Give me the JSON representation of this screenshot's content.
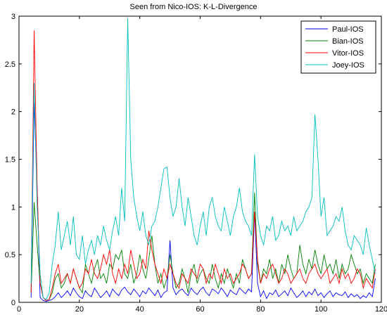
{
  "chart_data": {
    "type": "line",
    "title": "Seen from Nico-IOS: K-L-Divergence",
    "xlabel": "",
    "ylabel": "",
    "xlim": [
      0,
      120
    ],
    "ylim": [
      0,
      3
    ],
    "xticks": [
      0,
      20,
      40,
      60,
      80,
      100,
      120
    ],
    "yticks": [
      0,
      0.5,
      1,
      1.5,
      2,
      2.5,
      3
    ],
    "x_start": 4,
    "legend_position": "top-right",
    "grid": false,
    "series": [
      {
        "name": "Paul-IOS",
        "color": "#0000ff",
        "values": [
          0.05,
          2.1,
          1.2,
          0.05,
          0.02,
          0.01,
          0.02,
          0.03,
          0.06,
          0.1,
          0.05,
          0.08,
          0.12,
          0.07,
          0.15,
          0.1,
          0.06,
          0.04,
          0.12,
          0.08,
          0.06,
          0.15,
          0.1,
          0.05,
          0.08,
          0.12,
          0.06,
          0.14,
          0.1,
          0.07,
          0.13,
          0.16,
          0.11,
          0.08,
          0.14,
          0.1,
          0.06,
          0.12,
          0.09,
          0.15,
          0.11,
          0.07,
          0.13,
          0.05,
          0.1,
          0.12,
          0.65,
          0.15,
          0.08,
          0.12,
          0.14,
          0.1,
          0.07,
          0.15,
          0.11,
          0.08,
          0.13,
          0.16,
          0.1,
          0.07,
          0.14,
          0.12,
          0.09,
          0.15,
          0.11,
          0.06,
          0.13,
          0.1,
          0.08,
          0.15,
          0.12,
          0.09,
          0.14,
          0.11,
          0.95,
          0.2,
          0.06,
          0.12,
          0.04,
          0.1,
          0.08,
          0.13,
          0.06,
          0.09,
          0.12,
          0.07,
          0.15,
          0.1,
          0.05,
          0.08,
          0.12,
          0.06,
          0.11,
          0.08,
          0.14,
          0.07,
          0.1,
          0.05,
          0.09,
          0.12,
          0.06,
          0.1,
          0.08,
          0.07,
          0.11,
          0.05,
          0.09,
          0.06,
          0.08,
          0.04,
          0.07,
          0.05,
          0.1,
          0.06,
          0.25
        ]
      },
      {
        "name": "Bian-IOS",
        "color": "#008000",
        "values": [
          0.1,
          1.05,
          0.6,
          0.2,
          0.05,
          0.02,
          0.03,
          0.1,
          0.25,
          0.3,
          0.15,
          0.2,
          0.3,
          0.2,
          0.35,
          0.25,
          0.15,
          0.1,
          0.4,
          0.3,
          0.2,
          0.35,
          0.45,
          0.25,
          0.3,
          0.2,
          0.4,
          0.35,
          0.5,
          0.45,
          0.55,
          0.3,
          0.25,
          0.4,
          0.2,
          0.3,
          0.5,
          0.35,
          0.25,
          0.45,
          0.7,
          0.4,
          0.2,
          0.3,
          0.15,
          0.25,
          0.5,
          0.3,
          0.15,
          0.2,
          0.35,
          0.25,
          0.1,
          0.3,
          0.4,
          0.2,
          0.3,
          0.35,
          0.25,
          0.2,
          0.4,
          0.25,
          0.15,
          0.3,
          0.2,
          0.35,
          0.25,
          0.15,
          0.3,
          0.2,
          0.45,
          0.35,
          0.25,
          0.3,
          1.15,
          0.4,
          0.2,
          0.35,
          0.3,
          0.45,
          0.25,
          0.35,
          0.2,
          0.4,
          0.3,
          0.5,
          0.35,
          0.25,
          0.3,
          0.6,
          0.4,
          0.3,
          0.45,
          0.35,
          0.55,
          0.4,
          0.3,
          0.5,
          0.35,
          0.4,
          0.3,
          0.45,
          0.25,
          0.4,
          0.3,
          0.35,
          0.5,
          0.4,
          0.3,
          0.35,
          0.2,
          0.3,
          0.25,
          0.2,
          0.4
        ]
      },
      {
        "name": "Vitor-IOS",
        "color": "#ff0000",
        "values": [
          0.1,
          2.85,
          1.2,
          0.2,
          0.05,
          0.02,
          0.03,
          0.15,
          0.3,
          0.4,
          0.2,
          0.25,
          0.3,
          0.2,
          0.35,
          0.25,
          0.15,
          0.2,
          0.35,
          0.3,
          0.45,
          0.3,
          0.25,
          0.35,
          0.5,
          0.4,
          0.55,
          0.3,
          0.2,
          0.35,
          0.25,
          0.4,
          0.3,
          0.55,
          0.4,
          0.25,
          0.3,
          0.45,
          0.35,
          0.75,
          0.55,
          0.4,
          0.3,
          0.2,
          0.35,
          0.25,
          0.4,
          0.3,
          0.2,
          0.15,
          0.3,
          0.25,
          0.2,
          0.35,
          0.3,
          0.25,
          0.4,
          0.35,
          0.2,
          0.3,
          0.25,
          0.4,
          0.3,
          0.2,
          0.35,
          0.25,
          0.3,
          0.2,
          0.25,
          0.3,
          0.4,
          0.35,
          0.25,
          0.3,
          0.95,
          0.45,
          0.2,
          0.3,
          0.25,
          0.35,
          0.4,
          0.3,
          0.2,
          0.25,
          0.35,
          0.3,
          0.2,
          0.25,
          0.3,
          0.35,
          0.25,
          0.2,
          0.3,
          0.35,
          0.4,
          0.3,
          0.25,
          0.3,
          0.35,
          0.2,
          0.25,
          0.3,
          0.2,
          0.35,
          0.25,
          0.3,
          0.2,
          0.25,
          0.35,
          0.3,
          0.15,
          0.25,
          0.2,
          0.15,
          0.35
        ]
      },
      {
        "name": "Joey-IOS",
        "color": "#00bfbf",
        "values": [
          0.2,
          2.3,
          1.0,
          0.3,
          0.05,
          0.03,
          0.1,
          0.4,
          0.6,
          0.95,
          0.55,
          0.7,
          0.85,
          0.6,
          0.9,
          0.5,
          0.45,
          0.7,
          0.4,
          0.55,
          0.65,
          0.5,
          0.7,
          0.6,
          0.8,
          0.65,
          0.55,
          0.75,
          0.9,
          0.7,
          1.2,
          0.85,
          2.98,
          1.5,
          1.1,
          0.9,
          0.75,
          0.95,
          0.7,
          0.6,
          0.8,
          0.85,
          1.0,
          1.2,
          1.4,
          1.42,
          1.1,
          0.9,
          1.0,
          1.3,
          1.0,
          0.8,
          1.1,
          0.9,
          0.7,
          0.6,
          0.8,
          0.95,
          0.7,
          1.0,
          1.1,
          0.9,
          0.8,
          0.75,
          1.0,
          0.85,
          0.7,
          0.9,
          1.0,
          1.2,
          0.95,
          0.85,
          0.8,
          0.7,
          1.55,
          0.9,
          0.7,
          0.6,
          0.8,
          0.75,
          0.9,
          0.65,
          0.7,
          0.85,
          0.75,
          0.8,
          0.7,
          0.9,
          0.75,
          0.8,
          0.85,
          0.95,
          1.0,
          1.1,
          1.97,
          1.5,
          0.9,
          1.1,
          0.7,
          0.75,
          0.8,
          0.9,
          0.85,
          1.0,
          0.75,
          0.6,
          0.55,
          0.7,
          0.65,
          0.6,
          0.5,
          0.78,
          0.6,
          0.45,
          0.3
        ]
      }
    ]
  }
}
